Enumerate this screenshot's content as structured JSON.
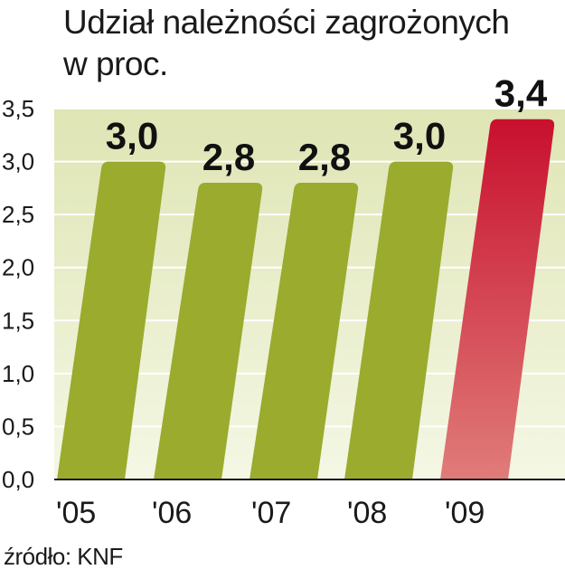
{
  "chart_data": {
    "type": "bar",
    "title_line1": "Udział należności zagrożonych",
    "title_line2": "w proc.",
    "categories": [
      "'05",
      "'06",
      "'07",
      "'08",
      "'09"
    ],
    "values": [
      3.0,
      2.8,
      2.8,
      3.0,
      3.4
    ],
    "value_labels": [
      "3,0",
      "2,8",
      "2,8",
      "3,0",
      "3,4"
    ],
    "yticks": [
      "0,0",
      "0,5",
      "1,0",
      "1,5",
      "2,0",
      "2,5",
      "3,0",
      "3,5"
    ],
    "ylim": [
      0,
      3.5
    ],
    "grid": true,
    "colors": {
      "bar": "#9aab2e",
      "highlight_top": "#c8102e",
      "highlight_bottom": "#e07c79",
      "background_top": "#dfe5b4",
      "background_bottom": "#f4f7e4",
      "grid": "#ffffff"
    },
    "highlight_index": 4
  },
  "source": "źródło: KNF"
}
